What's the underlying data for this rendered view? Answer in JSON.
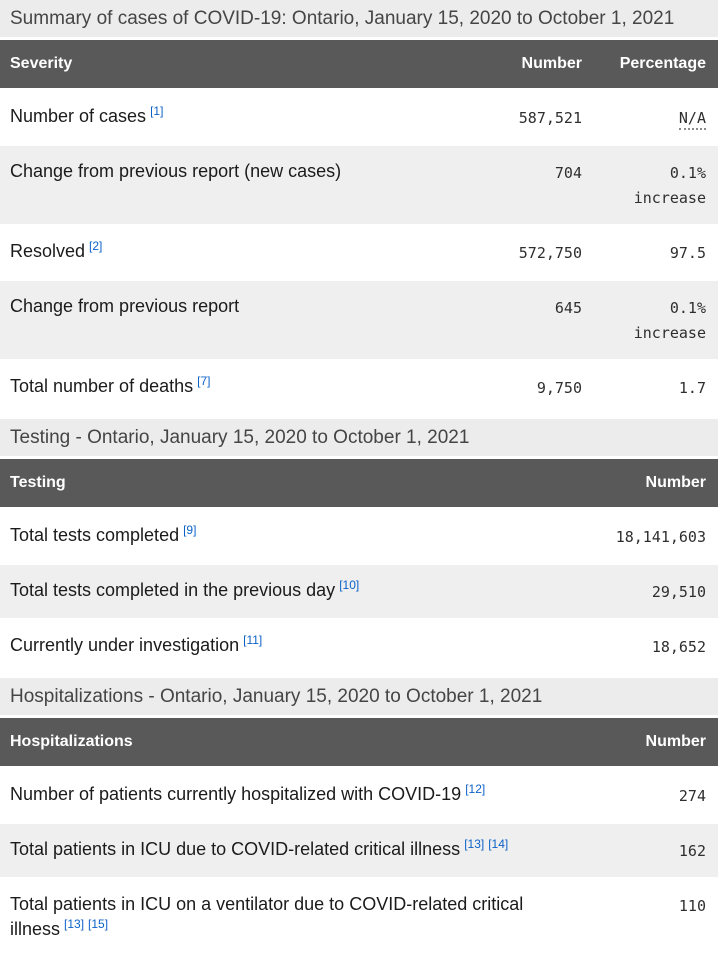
{
  "colors": {
    "header_bg": "#595959",
    "caption_band_bg": "#ececec",
    "stripe_row_bg": "#efefef",
    "link_blue": "#0d62c9",
    "label_text": "#1b1b1b",
    "caption_text": "#454545"
  },
  "tables": [
    {
      "caption": "Summary of cases of COVID-19: Ontario, January 15, 2020 to October 1, 2021",
      "columns": [
        "Severity",
        "Number",
        "Percentage"
      ],
      "rows": [
        {
          "label": "Number of cases",
          "refs": [
            "[1]"
          ],
          "number": "587,521",
          "percentage": "N/A"
        },
        {
          "label": "Change from previous report (new cases)",
          "number": "704",
          "percentage": "0.1% increase"
        },
        {
          "label": "Resolved",
          "refs": [
            "[2]"
          ],
          "number": "572,750",
          "percentage": "97.5"
        },
        {
          "label": "Change from previous report",
          "number": "645",
          "percentage": "0.1% increase"
        },
        {
          "label": "Total number of deaths",
          "refs": [
            "[7]"
          ],
          "number": "9,750",
          "percentage": "1.7"
        }
      ]
    },
    {
      "caption": "Testing - Ontario, January 15, 2020 to October 1, 2021",
      "columns": [
        "Testing",
        "Number"
      ],
      "rows": [
        {
          "label": "Total tests completed",
          "refs": [
            "[9]"
          ],
          "number": "18,141,603"
        },
        {
          "label": "Total tests completed in the previous day",
          "refs": [
            "[10]"
          ],
          "number": "29,510"
        },
        {
          "label": "Currently under investigation",
          "refs": [
            "[11]"
          ],
          "number": "18,652"
        }
      ]
    },
    {
      "caption": "Hospitalizations - Ontario, January 15, 2020 to October 1, 2021",
      "columns": [
        "Hospitalizations",
        "Number"
      ],
      "rows": [
        {
          "label": "Number of patients currently hospitalized with COVID-19",
          "refs": [
            "[12]"
          ],
          "number": "274"
        },
        {
          "label": "Total patients in ICU due to COVID-related critical illness",
          "refs": [
            "[13]",
            "[14]"
          ],
          "number": "162"
        },
        {
          "label": "Total patients in ICU on a ventilator due to COVID-related critical illness",
          "refs": [
            "[13]",
            "[15]"
          ],
          "number": "110"
        }
      ]
    }
  ]
}
